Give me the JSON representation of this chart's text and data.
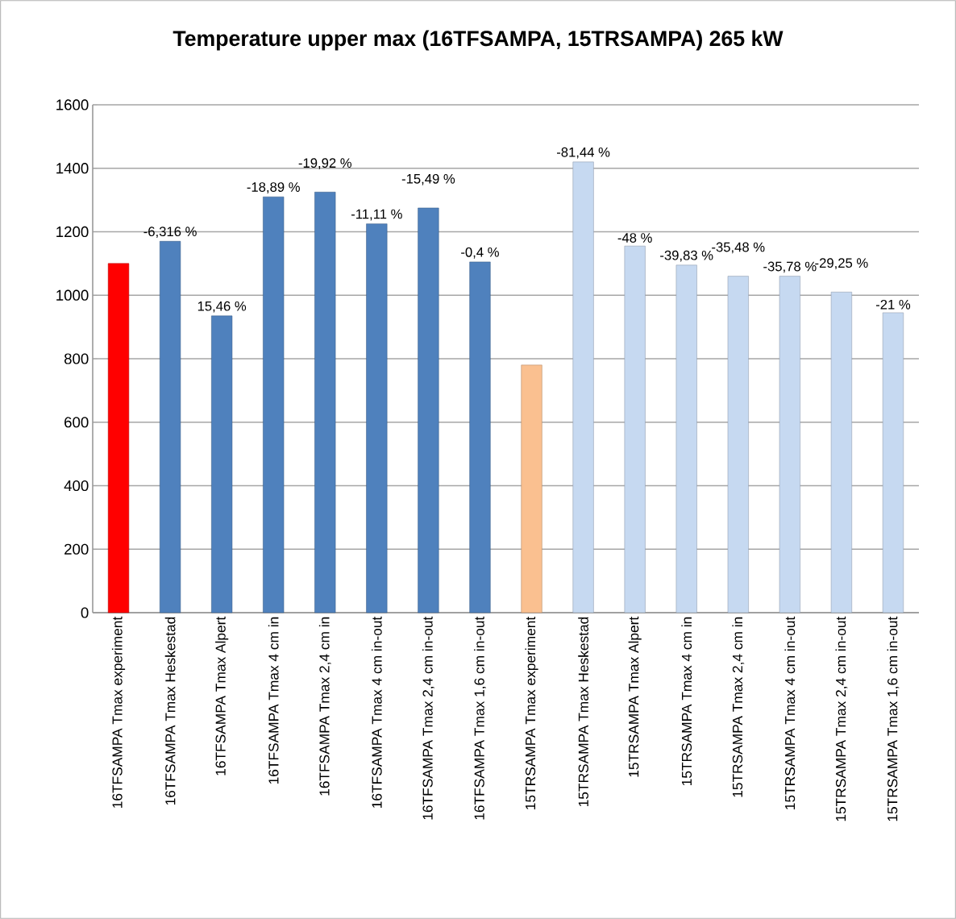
{
  "chart_data": {
    "type": "bar",
    "title": "Temperature upper max (16TFSAMPA, 15TRSAMPA) 265 kW",
    "categories": [
      "16TFSAMPA Tmax experiment",
      "16TFSAMPA Tmax Heskestad",
      "16TFSAMPA Tmax Alpert",
      "16TFSAMPA Tmax 4 cm in",
      "16TFSAMPA Tmax 2,4 cm in",
      "16TFSAMPA Tmax 4 cm in-out",
      "16TFSAMPA Tmax 2,4 cm in-out",
      "16TFSAMPA Tmax 1,6 cm in-out",
      "15TRSAMPA Tmax experiment",
      "15TRSAMPA Tmax Heskestad",
      "15TRSAMPA Tmax Alpert",
      "15TRSAMPA Tmax 4 cm in",
      "15TRSAMPA Tmax 2,4 cm in",
      "15TRSAMPA Tmax 4 cm in-out",
      "15TRSAMPA Tmax 2,4 cm in-out",
      "15TRSAMPA Tmax 1,6 cm in-out"
    ],
    "values": [
      1100,
      1170,
      935,
      1310,
      1325,
      1225,
      1275,
      1105,
      780,
      1420,
      1155,
      1095,
      1060,
      1060,
      1010,
      945
    ],
    "colors": [
      "#ff0000",
      "#4f81bd",
      "#4f81bd",
      "#4f81bd",
      "#4f81bd",
      "#4f81bd",
      "#4f81bd",
      "#4f81bd",
      "#fac090",
      "#c6d9f1",
      "#c6d9f1",
      "#c6d9f1",
      "#c6d9f1",
      "#c6d9f1",
      "#c6d9f1",
      "#c6d9f1"
    ],
    "annotations": [
      {
        "text": "-6,316 %",
        "x": "16TFSAMPA Tmax Heskestad",
        "y": 1170
      },
      {
        "text": "15,46 %",
        "x": "16TFSAMPA Tmax Alpert",
        "y": 935
      },
      {
        "text": "-18,89 %",
        "x": "16TFSAMPA Tmax 4 cm in",
        "y": 1310
      },
      {
        "text": "-19,92 %",
        "x": "16TFSAMPA Tmax 2,4 cm in",
        "y": 1325
      },
      {
        "text": "-11,11 %",
        "x": "16TFSAMPA Tmax 4 cm in-out",
        "y": 1225
      },
      {
        "text": "-15,49 %",
        "x": "16TFSAMPA Tmax 2,4 cm in-out",
        "y": 1275
      },
      {
        "text": "-0,4 %",
        "x": "16TFSAMPA Tmax 1,6 cm in-out",
        "y": 1105
      },
      {
        "text": "-81,44 %",
        "x": "15TRSAMPA Tmax Heskestad",
        "y": 1420
      },
      {
        "text": "-48  %",
        "x": "15TRSAMPA Tmax Alpert",
        "y": 1155
      },
      {
        "text": "-39,83 %",
        "x": "15TRSAMPA Tmax 4 cm in",
        "y": 1095
      },
      {
        "text": "-35,48 %",
        "x": "15TRSAMPA Tmax 2,4 cm in",
        "y": 1060
      },
      {
        "text": "-35,78 %",
        "x": "15TRSAMPA Tmax 4 cm in-out",
        "y": 1060
      },
      {
        "text": "-29,25 %",
        "x": "15TRSAMPA Tmax 2,4 cm in-out",
        "y": 1010
      },
      {
        "text": "-21 %",
        "x": "15TRSAMPA Tmax 1,6 cm in-out",
        "y": 945
      }
    ],
    "ylim": [
      0,
      1600
    ],
    "yticks": [
      0,
      200,
      400,
      600,
      800,
      1000,
      1200,
      1400,
      1600
    ],
    "grid": "y"
  }
}
